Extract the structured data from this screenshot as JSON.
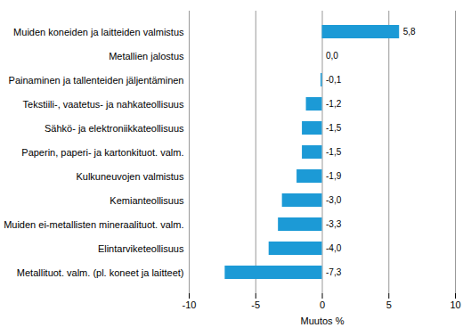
{
  "chart_data": {
    "type": "bar",
    "orientation": "horizontal",
    "categories": [
      "Muiden koneiden ja laitteiden valmistus",
      "Metallien jalostus",
      "Painaminen ja tallenteiden jäljentäminen",
      "Tekstiili-, vaatetus- ja nahkateollisuus",
      "Sähkö- ja elektroniikkateollisuus",
      "Paperin, paperi- ja kartonkituot. valm.",
      "Kulkuneuvojen valmistus",
      "Kemianteollisuus",
      "Muiden ei-metallisten mineraalituot. valm.",
      "Elintarviketeollisuus",
      "Metallituot. valm. (pl. koneet ja laitteet)"
    ],
    "values": [
      5.8,
      0.0,
      -0.1,
      -1.2,
      -1.5,
      -1.5,
      -1.9,
      -3.0,
      -3.3,
      -4.0,
      -7.3
    ],
    "value_labels": [
      "5,8",
      "0,0",
      "-0,1",
      "-1,2",
      "-1,5",
      "-1,5",
      "-1,9",
      "-3,0",
      "-3,3",
      "-4,0",
      "-7,3"
    ],
    "data_labels": true,
    "color": "#1c9ad6",
    "x_label": "Muutos %",
    "xlim": [
      -10,
      10
    ],
    "xticks": [
      -10,
      -5,
      0,
      5,
      10
    ],
    "grid": true
  }
}
